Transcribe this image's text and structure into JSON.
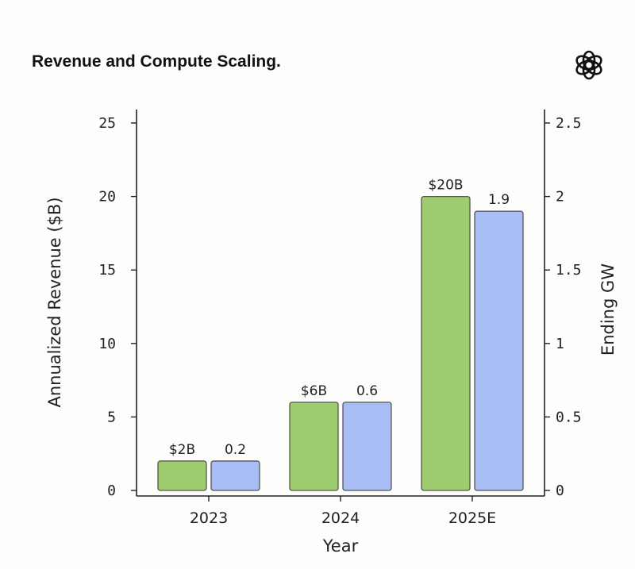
{
  "header": {
    "title": "Revenue and Compute Scaling.",
    "logo_icon": "openai-logo-icon"
  },
  "chart_data": {
    "type": "bar",
    "title": "Revenue and Compute Scaling.",
    "xlabel": "Year",
    "ylabel": "Annualized Revenue ($B)",
    "y2label": "Ending GW",
    "categories": [
      "2023",
      "2024",
      "2025E"
    ],
    "ylim": [
      0,
      25
    ],
    "y2lim": [
      0,
      2.5
    ],
    "yticks": [
      "0",
      "5",
      "10",
      "15",
      "20",
      "25"
    ],
    "y2ticks": [
      "0",
      "0.5",
      "1",
      "1.5",
      "2",
      "2.5"
    ],
    "grid": false,
    "series": [
      {
        "axis": "left",
        "color": "#9fcc70",
        "values": [
          2,
          6,
          20
        ],
        "labels": [
          "$2B",
          "$6B",
          "$20B"
        ]
      },
      {
        "axis": "right",
        "color": "#a7bdf4",
        "values": [
          0.2,
          0.6,
          1.9
        ],
        "labels": [
          "0.2",
          "0.6",
          "1.9"
        ]
      }
    ]
  }
}
